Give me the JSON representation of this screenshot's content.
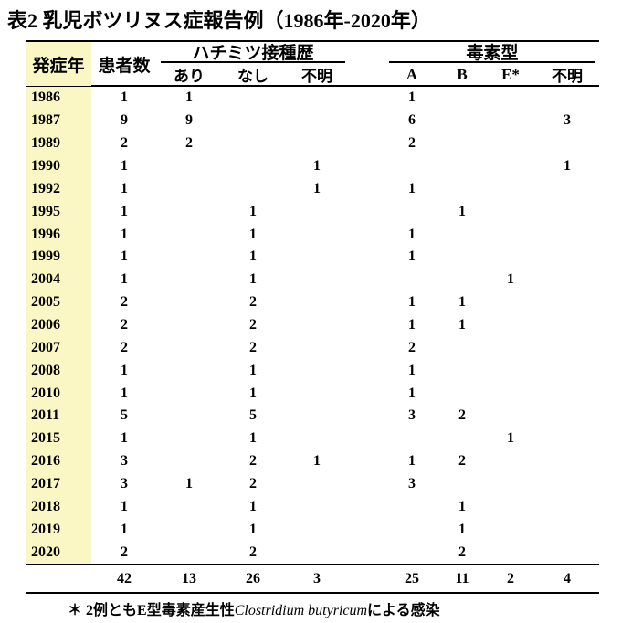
{
  "title": "表2 乳児ボツリヌス症報告例（1986年-2020年）",
  "colors": {
    "highlight": "#FBF7C5",
    "rule": "#000000",
    "text": "#000000",
    "background": "#FFFFFF"
  },
  "table": {
    "headers": {
      "year": "発症年",
      "patients": "患者数",
      "honey_group": "ハチミツ接種歴",
      "honey_cols": [
        "あり",
        "なし",
        "不明"
      ],
      "toxin_group": "毒素型",
      "toxin_cols": [
        "A",
        "B",
        "E*",
        "不明"
      ]
    },
    "rows": [
      {
        "year": "1986",
        "patients": "1",
        "honey": [
          "1",
          "",
          ""
        ],
        "toxin": [
          "1",
          "",
          "",
          ""
        ]
      },
      {
        "year": "1987",
        "patients": "9",
        "honey": [
          "9",
          "",
          ""
        ],
        "toxin": [
          "6",
          "",
          "",
          "3"
        ]
      },
      {
        "year": "1989",
        "patients": "2",
        "honey": [
          "2",
          "",
          ""
        ],
        "toxin": [
          "2",
          "",
          "",
          ""
        ]
      },
      {
        "year": "1990",
        "patients": "1",
        "honey": [
          "",
          "",
          "1"
        ],
        "toxin": [
          "",
          "",
          "",
          "1"
        ]
      },
      {
        "year": "1992",
        "patients": "1",
        "honey": [
          "",
          "",
          "1"
        ],
        "toxin": [
          "1",
          "",
          "",
          ""
        ]
      },
      {
        "year": "1995",
        "patients": "1",
        "honey": [
          "",
          "1",
          ""
        ],
        "toxin": [
          "",
          "1",
          "",
          ""
        ]
      },
      {
        "year": "1996",
        "patients": "1",
        "honey": [
          "",
          "1",
          ""
        ],
        "toxin": [
          "1",
          "",
          "",
          ""
        ]
      },
      {
        "year": "1999",
        "patients": "1",
        "honey": [
          "",
          "1",
          ""
        ],
        "toxin": [
          "1",
          "",
          "",
          ""
        ]
      },
      {
        "year": "2004",
        "patients": "1",
        "honey": [
          "",
          "1",
          ""
        ],
        "toxin": [
          "",
          "",
          "1",
          ""
        ]
      },
      {
        "year": "2005",
        "patients": "2",
        "honey": [
          "",
          "2",
          ""
        ],
        "toxin": [
          "1",
          "1",
          "",
          ""
        ]
      },
      {
        "year": "2006",
        "patients": "2",
        "honey": [
          "",
          "2",
          ""
        ],
        "toxin": [
          "1",
          "1",
          "",
          ""
        ]
      },
      {
        "year": "2007",
        "patients": "2",
        "honey": [
          "",
          "2",
          ""
        ],
        "toxin": [
          "2",
          "",
          "",
          ""
        ]
      },
      {
        "year": "2008",
        "patients": "1",
        "honey": [
          "",
          "1",
          ""
        ],
        "toxin": [
          "1",
          "",
          "",
          ""
        ]
      },
      {
        "year": "2010",
        "patients": "1",
        "honey": [
          "",
          "1",
          ""
        ],
        "toxin": [
          "1",
          "",
          "",
          ""
        ]
      },
      {
        "year": "2011",
        "patients": "5",
        "honey": [
          "",
          "5",
          ""
        ],
        "toxin": [
          "3",
          "2",
          "",
          ""
        ]
      },
      {
        "year": "2015",
        "patients": "1",
        "honey": [
          "",
          "1",
          ""
        ],
        "toxin": [
          "",
          "",
          "1",
          ""
        ]
      },
      {
        "year": "2016",
        "patients": "3",
        "honey": [
          "",
          "2",
          "1"
        ],
        "toxin": [
          "1",
          "2",
          "",
          ""
        ]
      },
      {
        "year": "2017",
        "patients": "3",
        "honey": [
          "1",
          "2",
          ""
        ],
        "toxin": [
          "3",
          "",
          "",
          ""
        ]
      },
      {
        "year": "2018",
        "patients": "1",
        "honey": [
          "",
          "1",
          ""
        ],
        "toxin": [
          "",
          "1",
          "",
          ""
        ]
      },
      {
        "year": "2019",
        "patients": "1",
        "honey": [
          "",
          "1",
          ""
        ],
        "toxin": [
          "",
          "1",
          "",
          ""
        ]
      },
      {
        "year": "2020",
        "patients": "2",
        "honey": [
          "",
          "2",
          ""
        ],
        "toxin": [
          "",
          "2",
          "",
          ""
        ]
      }
    ],
    "totals": {
      "patients": "42",
      "honey": [
        "13",
        "26",
        "3"
      ],
      "toxin": [
        "25",
        "11",
        "2",
        "4"
      ]
    }
  },
  "footnote": {
    "marker": "＊",
    "prefix": "2例ともE型毒素産生性",
    "species": "Clostridium butyricum",
    "suffix": "による感染"
  }
}
